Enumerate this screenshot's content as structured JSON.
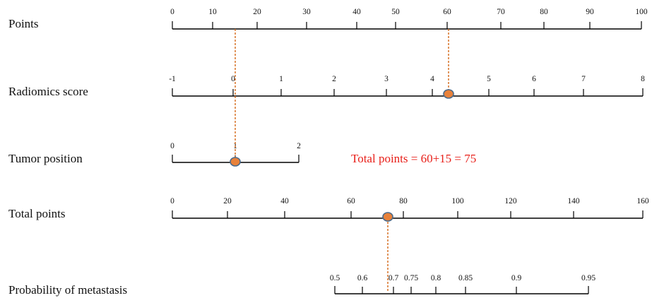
{
  "annotation": {
    "text": "Total points = 60+15 = 75",
    "color": "#e8201a"
  },
  "marker_color": "#e8813a",
  "guide_color": "#d4691a",
  "rows": [
    {
      "label": "Points",
      "ticks": [
        {
          "label": "0",
          "value": 0
        },
        {
          "label": "10",
          "value": 10
        },
        {
          "label": "20",
          "value": 20
        },
        {
          "label": "30",
          "value": 30
        },
        {
          "label": "40",
          "value": 40
        },
        {
          "label": "50",
          "value": 50
        },
        {
          "label": "60",
          "value": 60
        },
        {
          "label": "70",
          "value": 70
        },
        {
          "label": "80",
          "value": 80
        },
        {
          "label": "90",
          "value": 90
        },
        {
          "label": "100",
          "value": 100
        }
      ]
    },
    {
      "label": "Radiomics score",
      "ticks": [
        {
          "label": "-1",
          "value": 0
        },
        {
          "label": "0",
          "value": 12.5
        },
        {
          "label": "1",
          "value": 25
        },
        {
          "label": "2",
          "value": 37.5
        },
        {
          "label": "3",
          "value": 50
        },
        {
          "label": "4",
          "value": 62.5
        },
        {
          "label": "5",
          "value": 75
        },
        {
          "label": "6",
          "value": 87.5
        },
        {
          "label": "7",
          "value": 100
        },
        {
          "label": "8",
          "value": 112.5
        }
      ],
      "selected_value": 4.35
    },
    {
      "label": "Tumor position",
      "ticks": [
        {
          "label": "0",
          "value": 0
        },
        {
          "label": "1",
          "value": 1
        },
        {
          "label": "2",
          "value": 2
        }
      ],
      "selected_value": 1
    },
    {
      "label": "Total points",
      "ticks": [
        {
          "label": "0",
          "value": 0
        },
        {
          "label": "20",
          "value": 20
        },
        {
          "label": "40",
          "value": 40
        },
        {
          "label": "60",
          "value": 60
        },
        {
          "label": "80",
          "value": 80
        },
        {
          "label": "100",
          "value": 100
        },
        {
          "label": "120",
          "value": 120
        },
        {
          "label": "140",
          "value": 140
        },
        {
          "label": "160",
          "value": 160
        }
      ],
      "selected_value": 75
    },
    {
      "label": "Probability of metastasis",
      "ticks": [
        {
          "label": "0.5",
          "value": 0.5
        },
        {
          "label": "0.6",
          "value": 0.6
        },
        {
          "label": "0.7",
          "value": 0.7
        },
        {
          "label": "0.75",
          "value": 0.75
        },
        {
          "label": "0.8",
          "value": 0.8
        },
        {
          "label": "0.85",
          "value": 0.85
        },
        {
          "label": "0.9",
          "value": 0.9
        },
        {
          "label": "0.95",
          "value": 0.95
        }
      ]
    }
  ]
}
